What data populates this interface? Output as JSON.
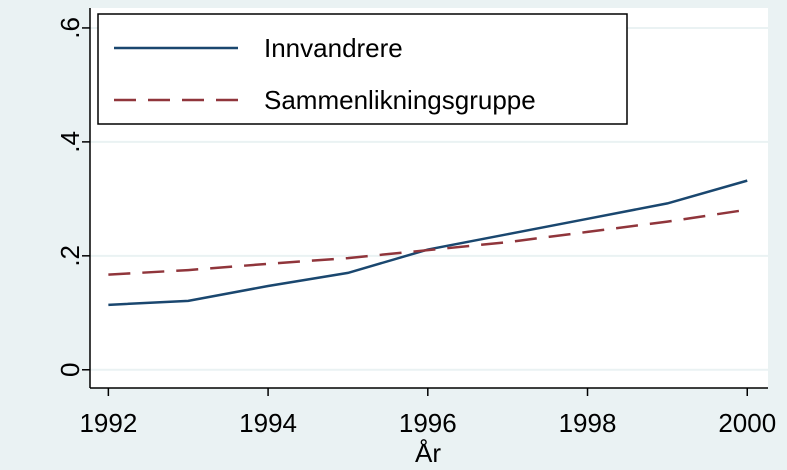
{
  "chart_data": {
    "type": "line",
    "x_label": "År",
    "x": [
      1992,
      1993,
      1994,
      1995,
      1996,
      1997,
      1998,
      1999,
      2000
    ],
    "series": [
      {
        "name": "Innvandrere",
        "color": "#1a476f",
        "dash": "solid",
        "values": [
          0.114,
          0.121,
          0.147,
          0.17,
          0.211,
          0.238,
          0.265,
          0.292,
          0.332
        ]
      },
      {
        "name": "Sammenlikningsgruppe",
        "color": "#90353b",
        "dash": "dashed",
        "values": [
          0.167,
          0.175,
          0.186,
          0.196,
          0.21,
          0.224,
          0.242,
          0.26,
          0.281
        ]
      }
    ],
    "xlim": [
      1991.77,
      2000.26
    ],
    "xticks": [
      1992,
      1994,
      1996,
      1998,
      2000
    ],
    "ylim": [
      -0.032,
      0.635
    ],
    "yticks": [
      0,
      {
        "value": 0.2,
        "label": ".2"
      },
      {
        "value": 0.4,
        "label": ".4"
      },
      {
        "value": 0.6,
        "label": ".6"
      }
    ],
    "grid": true,
    "legend": "top-left"
  }
}
